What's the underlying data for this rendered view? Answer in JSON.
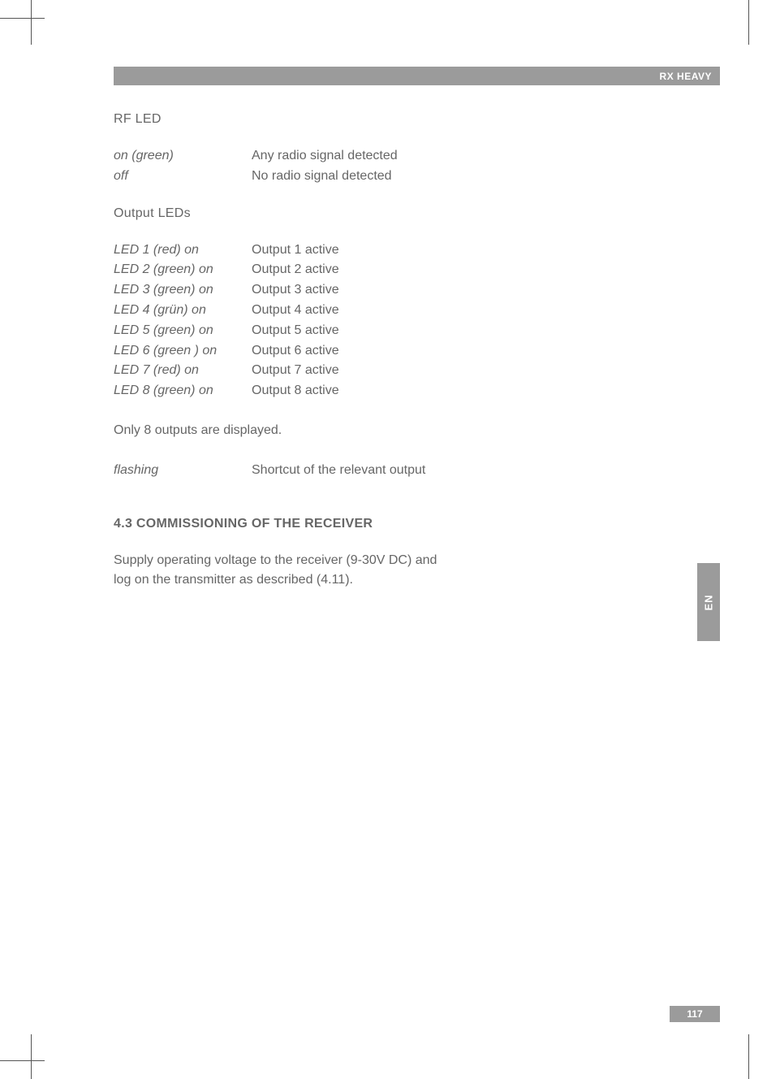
{
  "header": {
    "label": "RX HEAVY"
  },
  "sideTab": {
    "label": "EN"
  },
  "footer": {
    "pageNumber": "117"
  },
  "rfLed": {
    "heading": "RF LED",
    "rows": [
      {
        "term": "on (green)",
        "desc": "Any radio signal detected"
      },
      {
        "term": "off",
        "desc": "No radio signal detected"
      }
    ]
  },
  "outputLeds": {
    "heading": "Output LEDs",
    "rows": [
      {
        "term": "LED 1 (red) on",
        "desc": "Output 1 active"
      },
      {
        "term": "LED 2 (green) on",
        "desc": "Output 2 active"
      },
      {
        "term": "LED 3 (green) on",
        "desc": "Output 3 active"
      },
      {
        "term": "LED 4 (grün) on",
        "desc": "Output 4 active"
      },
      {
        "term": "LED 5 (green) on",
        "desc": "Output 5 active"
      },
      {
        "term": "LED 6 (green ) on",
        "desc": "Output 6 active"
      },
      {
        "term": "LED 7 (red) on",
        "desc": "Output 7 active"
      },
      {
        "term": "LED 8 (green) on",
        "desc": "Output 8 active"
      }
    ],
    "note": "Only 8 outputs are displayed.",
    "flashRow": {
      "term": "flashing",
      "desc": "Shortcut of the relevant output"
    }
  },
  "section43": {
    "heading": "4.3  COMMISSIONING OF THE RECEIVER",
    "body1": "Supply operating voltage to the receiver (9-30V DC) and",
    "body2": "log on the transmitter as described (4.11)."
  },
  "colors": {
    "barGray": "#9b9b9b",
    "textGray": "#666666",
    "white": "#ffffff"
  }
}
